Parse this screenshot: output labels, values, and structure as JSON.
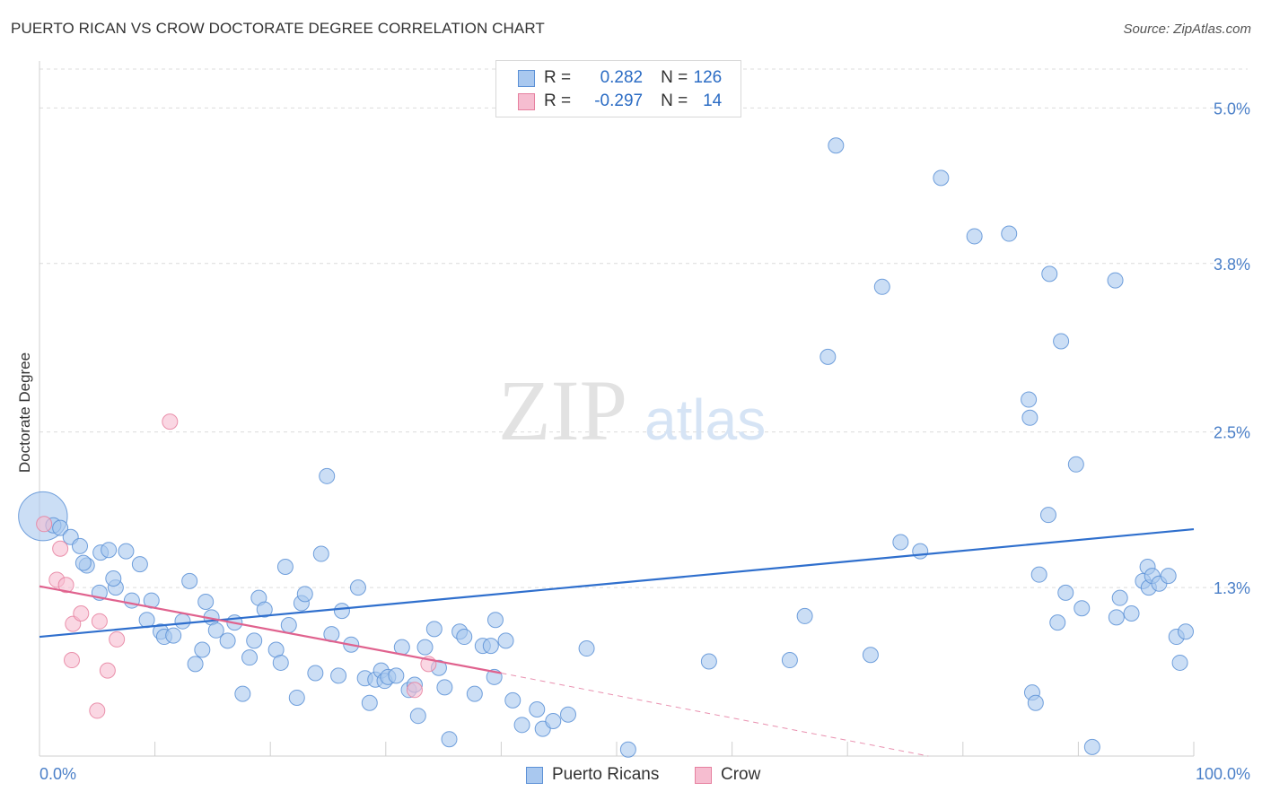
{
  "title": "PUERTO RICAN VS CROW DOCTORATE DEGREE CORRELATION CHART",
  "source": "Source: ZipAtlas.com",
  "watermark": {
    "zip": "ZIP",
    "atlas": "atlas"
  },
  "legend": {
    "series1": {
      "r_label": "R =",
      "r_value": "0.282",
      "n_label": "N =",
      "n_value": "126"
    },
    "series2": {
      "r_label": "R =",
      "r_value": "-0.297",
      "n_label": "N =",
      "n_value": "14"
    }
  },
  "colors": {
    "blue_fill": "#a9c8ef",
    "blue_stroke": "#5b90d6",
    "blue_line": "#2f6fcd",
    "pink_fill": "#f6bdd0",
    "pink_stroke": "#e6809f",
    "pink_line": "#e0628e",
    "axis_text": "#4a7fc8",
    "grid": "#dcdcdc"
  },
  "chart_data": {
    "type": "scatter",
    "title": "PUERTO RICAN VS CROW DOCTORATE DEGREE CORRELATION CHART",
    "xlabel": "",
    "ylabel": "Doctorate Degree",
    "xlim": [
      0,
      100
    ],
    "ylim": [
      0,
      5.3
    ],
    "x_tick_labels": [
      "0.0%",
      "100.0%"
    ],
    "y_ticks": [
      1.3,
      2.5,
      3.8,
      5.0
    ],
    "y_tick_labels": [
      "1.3%",
      "2.5%",
      "3.8%",
      "5.0%"
    ],
    "legend_position": "top-center",
    "series": [
      {
        "name": "Puerto Ricans",
        "r": 0.282,
        "n": 126,
        "trend": {
          "x": [
            0,
            100
          ],
          "y": [
            0.92,
            1.75
          ]
        },
        "points": [
          [
            0.3,
            1.85,
            3.2
          ],
          [
            1.2,
            1.78,
            1
          ],
          [
            1.8,
            1.76,
            1
          ],
          [
            2.7,
            1.69,
            1
          ],
          [
            3.5,
            1.62,
            1
          ],
          [
            5.3,
            1.57,
            1
          ],
          [
            4.1,
            1.47,
            1
          ],
          [
            3.8,
            1.49,
            1
          ],
          [
            7.5,
            1.58,
            1
          ],
          [
            6.0,
            1.59,
            1
          ],
          [
            8.7,
            1.48,
            1
          ],
          [
            6.6,
            1.3,
            1
          ],
          [
            6.4,
            1.37,
            1
          ],
          [
            5.2,
            1.26,
            1
          ],
          [
            8.0,
            1.2,
            1
          ],
          [
            9.7,
            1.2,
            1
          ],
          [
            9.3,
            1.05,
            1
          ],
          [
            10.5,
            0.96,
            1
          ],
          [
            10.8,
            0.92,
            1
          ],
          [
            11.6,
            0.93,
            1
          ],
          [
            12.4,
            1.04,
            1
          ],
          [
            13.0,
            1.35,
            1
          ],
          [
            14.1,
            0.82,
            1
          ],
          [
            13.5,
            0.71,
            1
          ],
          [
            14.4,
            1.19,
            1
          ],
          [
            14.9,
            1.07,
            1
          ],
          [
            15.3,
            0.97,
            1
          ],
          [
            16.3,
            0.89,
            1
          ],
          [
            16.9,
            1.03,
            1
          ],
          [
            17.6,
            0.48,
            1
          ],
          [
            18.2,
            0.76,
            1
          ],
          [
            18.6,
            0.89,
            1
          ],
          [
            19.0,
            1.22,
            1
          ],
          [
            19.5,
            1.13,
            1
          ],
          [
            20.5,
            0.82,
            1
          ],
          [
            20.9,
            0.72,
            1
          ],
          [
            21.3,
            1.46,
            1
          ],
          [
            21.6,
            1.01,
            1
          ],
          [
            22.3,
            0.45,
            1
          ],
          [
            22.7,
            1.18,
            1
          ],
          [
            23.0,
            1.25,
            1
          ],
          [
            23.9,
            0.64,
            1
          ],
          [
            24.4,
            1.56,
            1
          ],
          [
            24.9,
            2.16,
            1
          ],
          [
            25.3,
            0.94,
            1
          ],
          [
            25.9,
            0.62,
            1
          ],
          [
            26.2,
            1.12,
            1
          ],
          [
            27.0,
            0.86,
            1
          ],
          [
            27.6,
            1.3,
            1
          ],
          [
            28.2,
            0.6,
            1
          ],
          [
            28.6,
            0.41,
            1
          ],
          [
            29.1,
            0.59,
            1
          ],
          [
            29.6,
            0.66,
            1
          ],
          [
            29.9,
            0.58,
            1
          ],
          [
            30.2,
            0.61,
            1
          ],
          [
            30.9,
            0.62,
            1
          ],
          [
            31.4,
            0.84,
            1
          ],
          [
            32.0,
            0.51,
            1
          ],
          [
            32.5,
            0.55,
            1
          ],
          [
            32.8,
            0.31,
            1
          ],
          [
            33.4,
            0.84,
            1
          ],
          [
            34.2,
            0.98,
            1
          ],
          [
            34.6,
            0.68,
            1
          ],
          [
            35.1,
            0.53,
            1
          ],
          [
            35.5,
            0.13,
            1
          ],
          [
            36.4,
            0.96,
            1
          ],
          [
            36.8,
            0.92,
            1
          ],
          [
            37.7,
            0.48,
            1
          ],
          [
            38.4,
            0.85,
            1
          ],
          [
            39.5,
            1.05,
            1
          ],
          [
            39.1,
            0.85,
            1
          ],
          [
            39.4,
            0.61,
            1
          ],
          [
            40.4,
            0.89,
            1
          ],
          [
            41.0,
            0.43,
            1
          ],
          [
            41.8,
            0.24,
            1
          ],
          [
            43.1,
            0.36,
            1
          ],
          [
            43.6,
            0.21,
            1
          ],
          [
            44.5,
            0.27,
            1
          ],
          [
            45.8,
            0.32,
            1
          ],
          [
            47.4,
            0.83,
            1
          ],
          [
            51.0,
            0.05,
            1
          ],
          [
            58.0,
            0.73,
            1
          ],
          [
            65.0,
            0.74,
            1
          ],
          [
            66.3,
            1.08,
            1
          ],
          [
            68.3,
            3.08,
            1
          ],
          [
            69.0,
            4.71,
            1
          ],
          [
            72.0,
            0.78,
            1
          ],
          [
            73.0,
            3.62,
            1
          ],
          [
            74.6,
            1.65,
            1
          ],
          [
            76.3,
            1.58,
            1
          ],
          [
            78.1,
            4.46,
            1
          ],
          [
            81.0,
            4.01,
            1
          ],
          [
            84.0,
            4.03,
            1
          ],
          [
            85.7,
            2.75,
            1
          ],
          [
            85.8,
            2.61,
            1
          ],
          [
            86.0,
            0.49,
            1
          ],
          [
            86.3,
            0.41,
            1
          ],
          [
            86.6,
            1.4,
            1
          ],
          [
            87.4,
            1.86,
            1
          ],
          [
            87.5,
            3.72,
            1
          ],
          [
            88.2,
            1.03,
            1
          ],
          [
            88.5,
            3.2,
            1
          ],
          [
            88.9,
            1.26,
            1
          ],
          [
            89.8,
            2.25,
            1
          ],
          [
            90.3,
            1.14,
            1
          ],
          [
            91.2,
            0.07,
            1
          ],
          [
            93.2,
            3.67,
            1
          ],
          [
            93.3,
            1.07,
            1
          ],
          [
            93.6,
            1.22,
            1
          ],
          [
            94.6,
            1.1,
            1
          ],
          [
            95.6,
            1.35,
            1
          ],
          [
            96.0,
            1.46,
            1
          ],
          [
            96.1,
            1.3,
            1
          ],
          [
            96.4,
            1.39,
            1
          ],
          [
            97.0,
            1.33,
            1
          ],
          [
            97.8,
            1.39,
            1
          ],
          [
            98.5,
            0.92,
            1
          ],
          [
            98.8,
            0.72,
            1
          ],
          [
            99.3,
            0.96,
            1
          ]
        ]
      },
      {
        "name": "Crow",
        "r": -0.297,
        "n": 14,
        "trend": {
          "x": [
            0,
            40
          ],
          "y": [
            1.31,
            0.64
          ]
        },
        "trend_extension": {
          "x": [
            40,
            77
          ],
          "y": [
            0.64,
            0
          ]
        },
        "points": [
          [
            0.4,
            1.79,
            1
          ],
          [
            1.5,
            1.36,
            1
          ],
          [
            1.8,
            1.6,
            1
          ],
          [
            2.3,
            1.32,
            1
          ],
          [
            2.8,
            0.74,
            1
          ],
          [
            2.9,
            1.02,
            1
          ],
          [
            3.6,
            1.1,
            1
          ],
          [
            5.2,
            1.04,
            1
          ],
          [
            5.0,
            0.35,
            1
          ],
          [
            5.9,
            0.66,
            1
          ],
          [
            6.7,
            0.9,
            1
          ],
          [
            11.3,
            2.58,
            1
          ],
          [
            32.5,
            0.51,
            1
          ],
          [
            33.7,
            0.71,
            1
          ]
        ]
      }
    ]
  }
}
